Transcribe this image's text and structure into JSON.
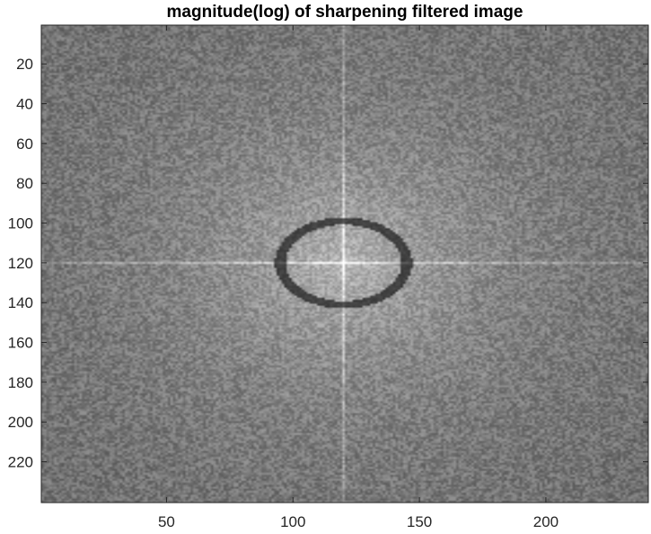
{
  "chart_data": {
    "type": "heatmap",
    "title": "magnitude(log) of sharpening filtered image",
    "xlabel": "",
    "ylabel": "",
    "colormap": "gray",
    "y_reversed": true,
    "xlim": [
      0.5,
      240.5
    ],
    "ylim": [
      0.5,
      240.5
    ],
    "x_ticks": [
      50,
      100,
      150,
      200
    ],
    "y_ticks": [
      20,
      40,
      60,
      80,
      100,
      120,
      140,
      160,
      180,
      200,
      220
    ],
    "center": [
      120,
      120
    ],
    "features": {
      "background_level": 0.43,
      "center_peak_level": 1.0,
      "dark_ring": {
        "center_x": 120,
        "center_y": 120,
        "radius_x": 25,
        "radius_y": 21,
        "level": 0.05
      },
      "cross_lines": "bright horizontal and vertical lines through the center"
    }
  }
}
